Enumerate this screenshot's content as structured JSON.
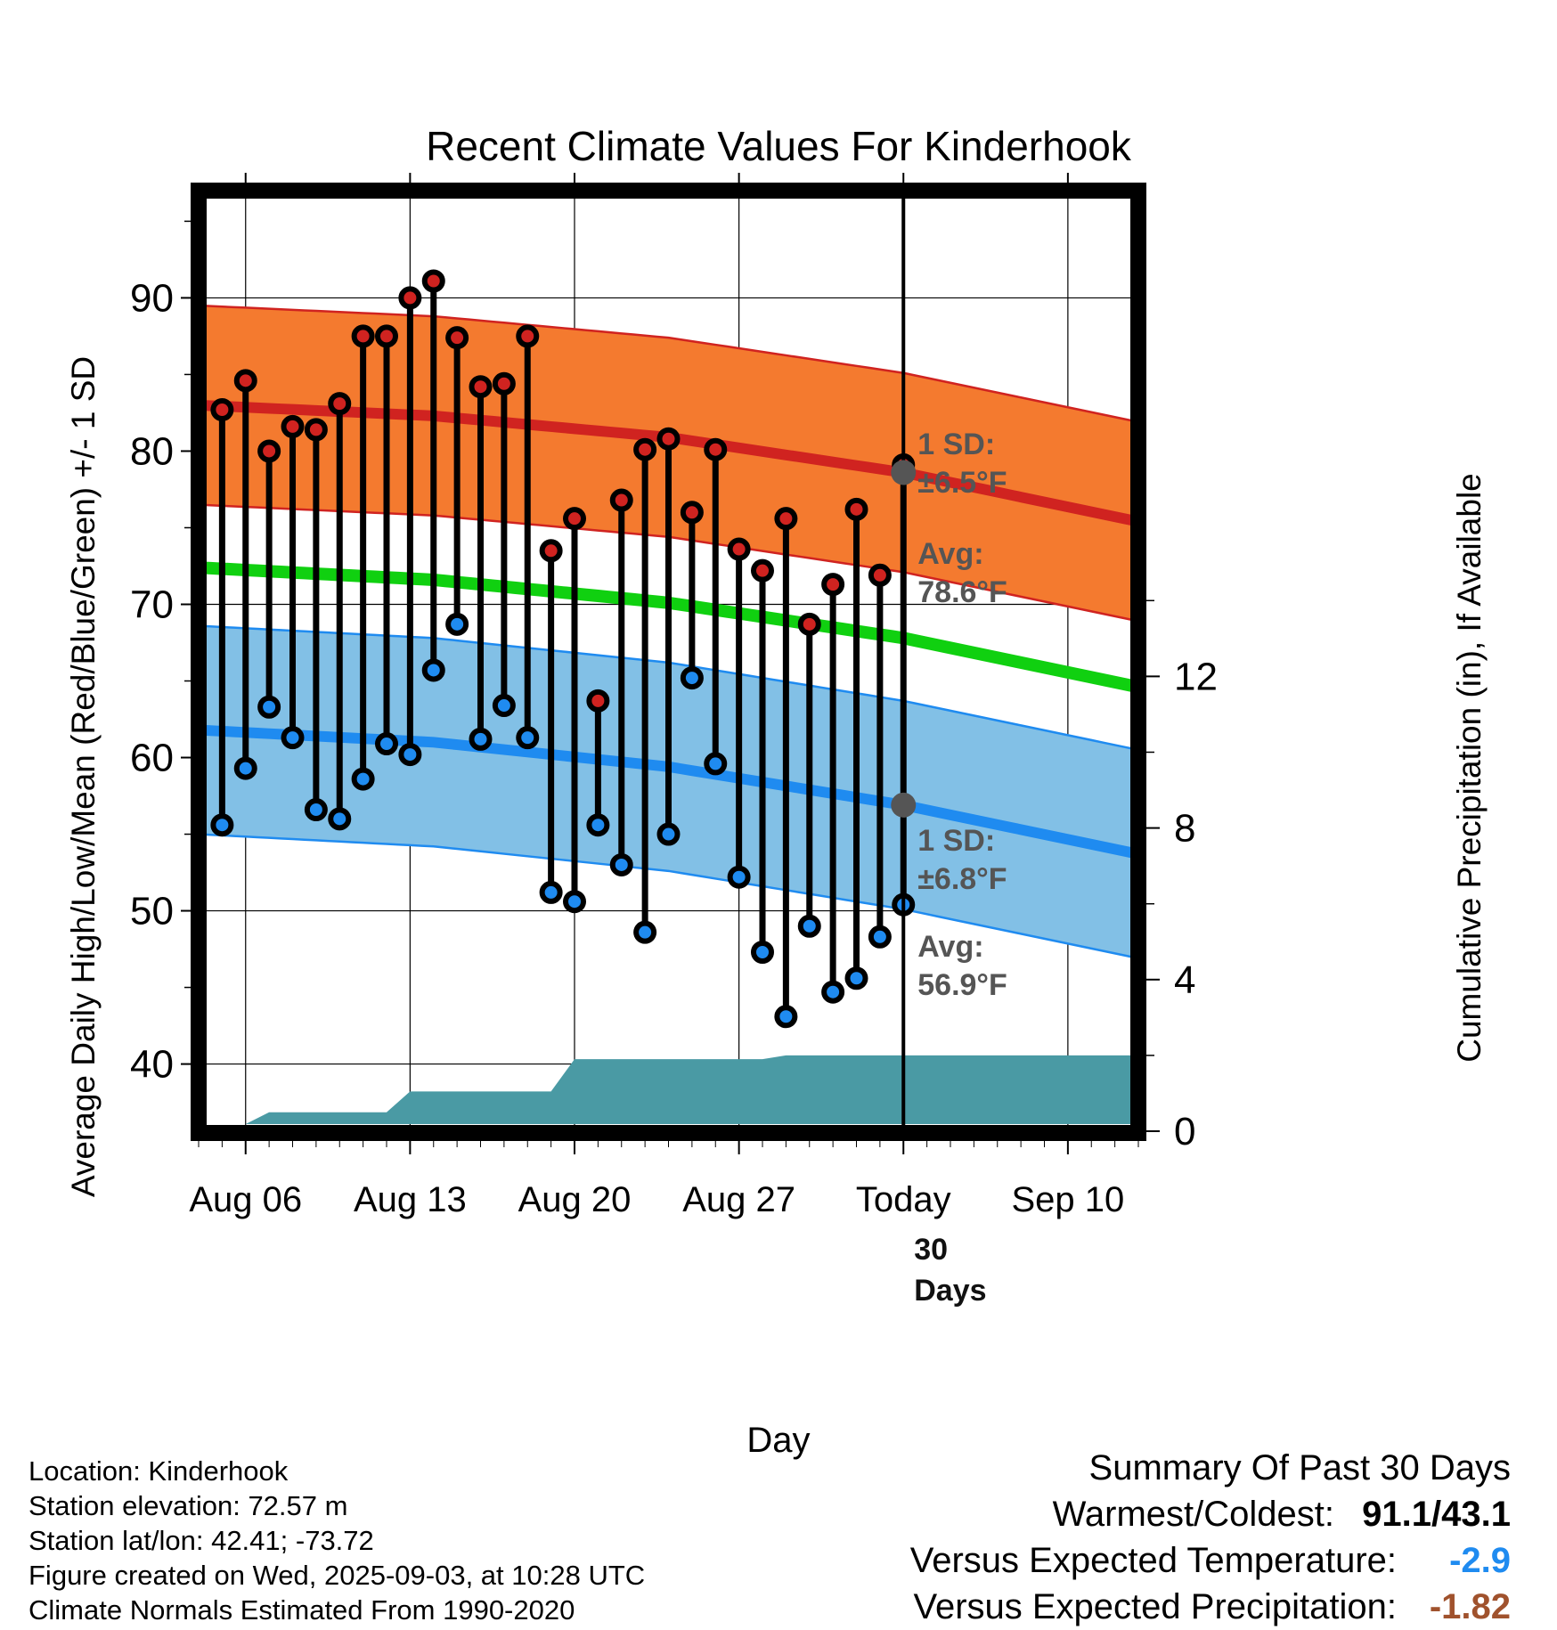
{
  "chart_data": {
    "type": "line",
    "title": "Recent Climate Values For Kinderhook",
    "xlabel": "Day",
    "ylabel": "Average Daily High/Low/Mean (Red/Blue/Green) +/- 1 SD",
    "y2label": "Cumulative Precipitation (in), If Available",
    "x_range": [
      "2025-08-04",
      "2025-09-13"
    ],
    "ylim": [
      35.5,
      97
    ],
    "y2lim": [
      0,
      24.3
    ],
    "x_ticks": [
      {
        "date": "2025-08-06",
        "label": "Aug 06"
      },
      {
        "date": "2025-08-13",
        "label": "Aug 13"
      },
      {
        "date": "2025-08-20",
        "label": "Aug 20"
      },
      {
        "date": "2025-08-27",
        "label": "Aug 27"
      },
      {
        "date": "2025-09-03",
        "label": "Today"
      },
      {
        "date": "2025-09-10",
        "label": "Sep 10"
      }
    ],
    "y_ticks": [
      40,
      50,
      60,
      70,
      80,
      90
    ],
    "y2_ticks": [
      0,
      4,
      8,
      12
    ],
    "grid": true,
    "today": "2025-09-03",
    "daily_observations": {
      "dates": [
        "2025-08-05",
        "2025-08-06",
        "2025-08-07",
        "2025-08-08",
        "2025-08-09",
        "2025-08-10",
        "2025-08-11",
        "2025-08-12",
        "2025-08-13",
        "2025-08-14",
        "2025-08-15",
        "2025-08-16",
        "2025-08-17",
        "2025-08-18",
        "2025-08-19",
        "2025-08-20",
        "2025-08-21",
        "2025-08-22",
        "2025-08-23",
        "2025-08-24",
        "2025-08-25",
        "2025-08-26",
        "2025-08-27",
        "2025-08-28",
        "2025-08-29",
        "2025-08-30",
        "2025-08-31",
        "2025-09-01",
        "2025-09-02",
        "2025-09-03"
      ],
      "high": [
        82.7,
        84.6,
        80.0,
        81.6,
        81.4,
        83.1,
        87.5,
        87.5,
        90.0,
        91.1,
        87.4,
        84.2,
        84.4,
        87.5,
        73.5,
        75.6,
        63.7,
        76.8,
        80.1,
        80.8,
        76.0,
        80.1,
        73.6,
        72.2,
        75.6,
        68.7,
        71.3,
        76.2,
        71.9,
        79.1
      ],
      "low": [
        55.6,
        59.3,
        63.3,
        61.3,
        56.6,
        56.0,
        58.6,
        60.9,
        60.2,
        65.7,
        68.7,
        61.2,
        63.4,
        61.3,
        51.2,
        50.6,
        55.6,
        53.0,
        48.6,
        55.0,
        65.2,
        59.6,
        52.2,
        47.3,
        43.1,
        49.0,
        44.7,
        45.6,
        48.3,
        50.4
      ]
    },
    "normals": {
      "dates": [
        "2025-08-04",
        "2025-08-14",
        "2025-08-24",
        "2025-09-03",
        "2025-09-13"
      ],
      "high_avg": [
        83.0,
        82.3,
        80.9,
        78.6,
        75.4
      ],
      "high_sd": 6.5,
      "low_avg": [
        61.8,
        61.0,
        59.4,
        56.9,
        53.7
      ],
      "low_sd": 6.8,
      "mean_avg": [
        72.4,
        71.6,
        70.1,
        67.8,
        64.6
      ]
    },
    "precipitation": {
      "dates": [
        "2025-08-04",
        "2025-08-06",
        "2025-08-07",
        "2025-08-12",
        "2025-08-13",
        "2025-08-19",
        "2025-08-20",
        "2025-08-28",
        "2025-08-29",
        "2025-09-13"
      ],
      "cumulative": [
        0,
        0,
        0.5,
        0.5,
        1.05,
        1.05,
        1.9,
        1.9,
        2.0,
        2.0
      ]
    },
    "colors": {
      "high_band": "#f47a2f",
      "high_line": "#d02320",
      "low_band": "#82c0e6",
      "low_line": "#1f8bf0",
      "mean_line": "#10d010",
      "precip_fill": "#4a9aa4",
      "annotation": "#555555"
    },
    "annotations": {
      "high_sd_label": "1 SD:",
      "high_sd_value": "±6.5°F",
      "high_avg_label": "Avg:",
      "high_avg_value": "78.6°F",
      "low_sd_label": "1 SD:",
      "low_sd_value": "±6.8°F",
      "low_avg_label": "Avg:",
      "low_avg_value": "56.9°F",
      "period_label_1": "30",
      "period_label_2": "Days"
    }
  },
  "footer": {
    "location": "Location: Kinderhook",
    "elevation": "Station elevation: 72.57 m",
    "latlon": "Station lat/lon: 42.41; -73.72",
    "created": "Figure created on Wed, 2025-09-03, at 10:28 UTC",
    "normals": "Climate Normals Estimated From 1990-2020"
  },
  "summary": {
    "title": "Summary Of Past 30 Days",
    "warm_cold_label": "Warmest/Coldest:",
    "warm_cold_value": "91.1/43.1",
    "temp_label": "Versus Expected Temperature:",
    "temp_value": "-2.9",
    "temp_color": "#1f8bf0",
    "precip_label": "Versus Expected Precipitation:",
    "precip_value": "-1.82",
    "precip_color": "#a0522d"
  }
}
